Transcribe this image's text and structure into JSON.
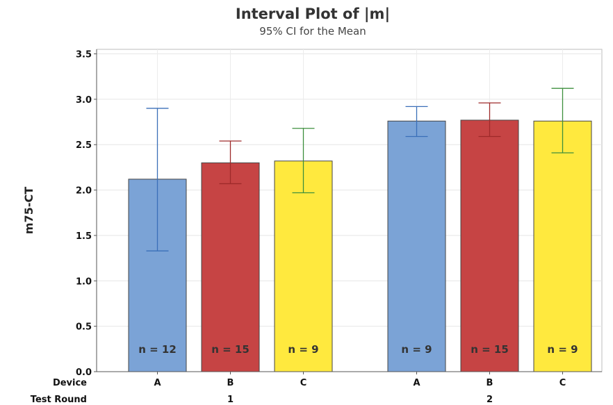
{
  "chart_data": {
    "type": "bar",
    "title": "Interval Plot of |m|",
    "subtitle": "95% CI for the Mean",
    "ylabel": "m75-CT",
    "ylim": [
      0,
      3.55
    ],
    "yticks": [
      "0.0",
      "0.5",
      "1.0",
      "1.5",
      "2.0",
      "2.5",
      "3.0",
      "3.5"
    ],
    "grid": true,
    "row_labels": {
      "device": "Device",
      "round": "Test Round"
    },
    "groups": [
      {
        "round": "1",
        "bars": [
          {
            "device": "A",
            "mean": 2.12,
            "ci_low": 1.33,
            "ci_high": 2.9,
            "n_label": "n = 12",
            "color": "#7ba3d6",
            "err_color": "#3a6fb8"
          },
          {
            "device": "B",
            "mean": 2.3,
            "ci_low": 2.07,
            "ci_high": 2.54,
            "n_label": "n = 15",
            "color": "#c64444",
            "err_color": "#9e2a2a"
          },
          {
            "device": "C",
            "mean": 2.32,
            "ci_low": 1.97,
            "ci_high": 2.68,
            "n_label": "n = 9",
            "color": "#ffe93e",
            "err_color": "#3d8f3d"
          }
        ]
      },
      {
        "round": "2",
        "bars": [
          {
            "device": "A",
            "mean": 2.76,
            "ci_low": 2.59,
            "ci_high": 2.92,
            "n_label": "n = 9",
            "color": "#7ba3d6",
            "err_color": "#3a6fb8"
          },
          {
            "device": "B",
            "mean": 2.77,
            "ci_low": 2.59,
            "ci_high": 2.96,
            "n_label": "n = 15",
            "color": "#c64444",
            "err_color": "#9e2a2a"
          },
          {
            "device": "C",
            "mean": 2.76,
            "ci_low": 2.41,
            "ci_high": 3.12,
            "n_label": "n = 9",
            "color": "#ffe93e",
            "err_color": "#3d8f3d"
          }
        ]
      }
    ]
  }
}
